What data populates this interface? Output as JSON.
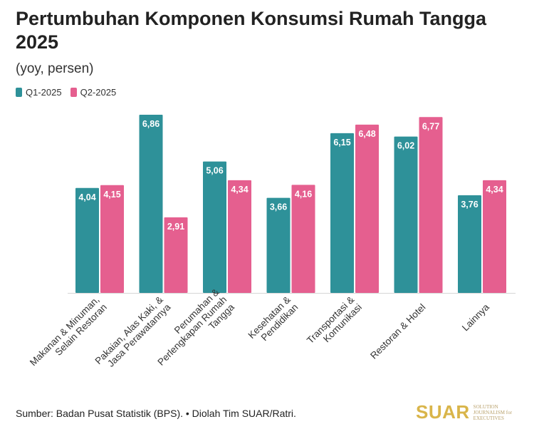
{
  "title": "Pertumbuhan Komponen Konsumsi Rumah Tangga 2025",
  "subtitle": "(yoy, persen)",
  "legend": [
    {
      "name": "Q1-2025",
      "color": "#2e9199"
    },
    {
      "name": "Q2-2025",
      "color": "#e55f8f"
    }
  ],
  "source": "Sumber: Badan Pusat Statistik (BPS). • Diolah Tim SUAR/Ratri.",
  "logo": {
    "word": "SUAR",
    "tagline": "SOLUTION JOURNALISM for EXECUTIVES"
  },
  "chart_data": {
    "type": "bar",
    "categories": [
      [
        "Makanan & Minuman,",
        "Selain Restoran"
      ],
      [
        "Pakaian, Alas Kaki, &",
        "Jasa Perawatannya"
      ],
      [
        "Perumahan &",
        "Perlengkapan Rumah",
        "Tangga"
      ],
      [
        "Kesehatan &",
        "Pendidikan"
      ],
      [
        "Transportasi &",
        "Komunikasi"
      ],
      [
        "Restoran & Hotel"
      ],
      [
        "Lainnya"
      ]
    ],
    "series": [
      {
        "name": "Q1-2025",
        "color": "#2e9199",
        "values": [
          4.04,
          6.86,
          5.06,
          3.66,
          6.15,
          6.02,
          3.76
        ],
        "labels": [
          "4,04",
          "6,86",
          "5,06",
          "3,66",
          "6,15",
          "6,02",
          "3,76"
        ]
      },
      {
        "name": "Q2-2025",
        "color": "#e55f8f",
        "values": [
          4.15,
          2.91,
          4.34,
          4.16,
          6.48,
          6.77,
          4.34
        ],
        "labels": [
          "4,15",
          "2,91",
          "4,34",
          "4,16",
          "6,48",
          "6,77",
          "4,34"
        ]
      }
    ],
    "ylim": [
      0,
      6.86
    ],
    "xlabel": "",
    "ylabel": "",
    "grid": false,
    "legend_position": "top-left"
  }
}
